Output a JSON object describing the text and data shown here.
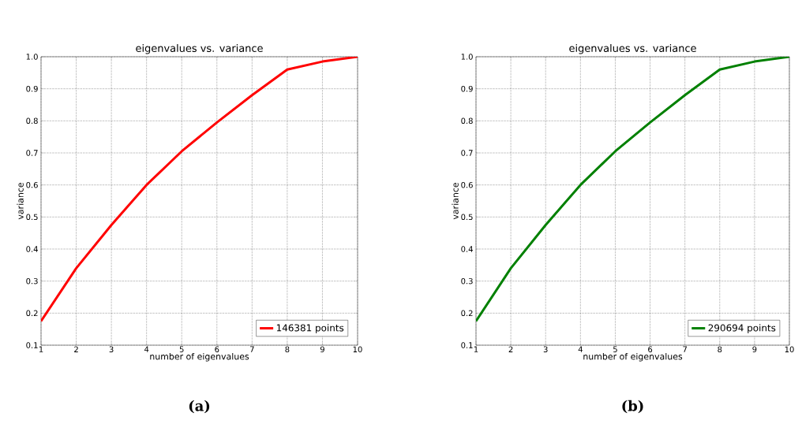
{
  "chart_data": [
    {
      "type": "line",
      "title": "eigenvalues vs. variance",
      "xlabel": "number of eigenvalues",
      "ylabel": "variance",
      "x": [
        1,
        2,
        3,
        4,
        5,
        6,
        7,
        8,
        9,
        10
      ],
      "series": [
        {
          "name": "146381 points",
          "color": "#ff0000",
          "values": [
            0.175,
            0.34,
            0.475,
            0.6,
            0.705,
            0.795,
            0.88,
            0.96,
            0.985,
            1.0
          ]
        }
      ],
      "xlim": [
        1,
        10
      ],
      "xticks": [
        1,
        2,
        3,
        4,
        5,
        6,
        7,
        8,
        9,
        10
      ],
      "ylim": [
        0.1,
        1.0
      ],
      "yticks": [
        0.1,
        0.2,
        0.3,
        0.4,
        0.5,
        0.6,
        0.7,
        0.8,
        0.9,
        {
          "value": 1.0,
          "label": "1.0"
        }
      ],
      "grid": true,
      "legend": "bottom right",
      "annotations": [
        "(a)"
      ]
    },
    {
      "type": "line",
      "title": "eigenvalues vs. variance",
      "xlabel": "number of eigenvalues",
      "ylabel": "variance",
      "x": [
        1,
        2,
        3,
        4,
        5,
        6,
        7,
        8,
        9,
        10
      ],
      "series": [
        {
          "name": "290694 points",
          "color": "#008000",
          "values": [
            0.175,
            0.34,
            0.475,
            0.6,
            0.705,
            0.795,
            0.88,
            0.96,
            0.985,
            1.0
          ]
        }
      ],
      "xlim": [
        1,
        10
      ],
      "xticks": [
        1,
        2,
        3,
        4,
        5,
        6,
        7,
        8,
        9,
        10
      ],
      "ylim": [
        0.1,
        1.0
      ],
      "yticks": [
        0.1,
        0.2,
        0.3,
        0.4,
        0.5,
        0.6,
        0.7,
        0.8,
        0.9,
        {
          "value": 1.0,
          "label": "1.0"
        }
      ],
      "grid": true,
      "legend": "bottom right",
      "annotations": [
        "(b)"
      ]
    }
  ]
}
